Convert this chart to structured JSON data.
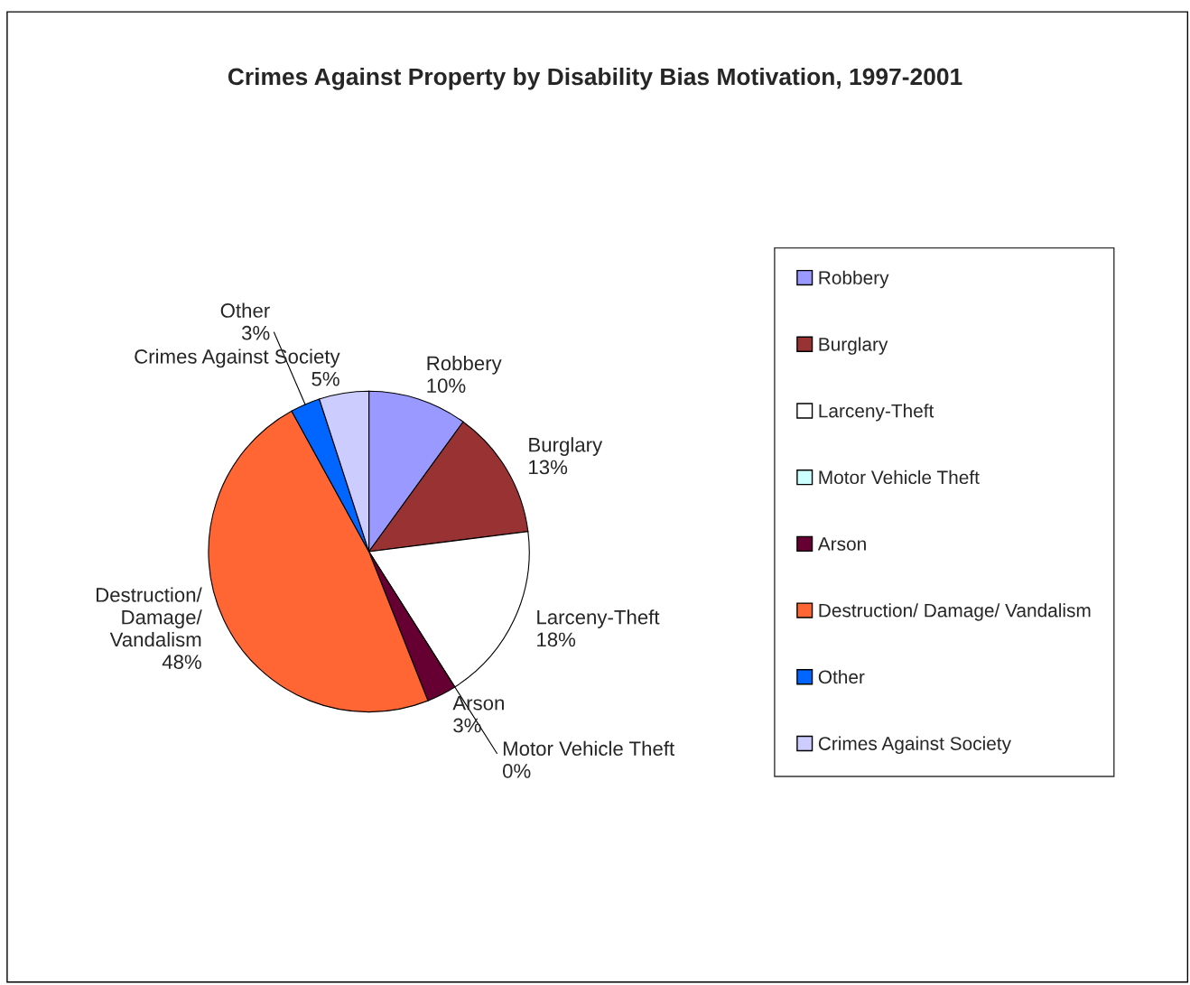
{
  "chart_data": {
    "type": "pie",
    "title": "Crimes Against Property by Disability Bias Motivation, 1997-2001",
    "categories": [
      "Robbery",
      "Burglary",
      "Larceny-Theft",
      "Motor Vehicle Theft",
      "Arson",
      "Destruction/ Damage/ Vandalism",
      "Other",
      "Crimes Against Society"
    ],
    "values": [
      10,
      13,
      18,
      0,
      3,
      48,
      3,
      5
    ],
    "value_labels": [
      "10%",
      "13%",
      "18%",
      "0%",
      "3%",
      "48%",
      "3%",
      "5%"
    ],
    "colors": [
      "#9999ff",
      "#993333",
      "#ffffff",
      "#ccffff",
      "#660033",
      "#ff6633",
      "#0066ff",
      "#ccccff"
    ],
    "legend": "right"
  }
}
